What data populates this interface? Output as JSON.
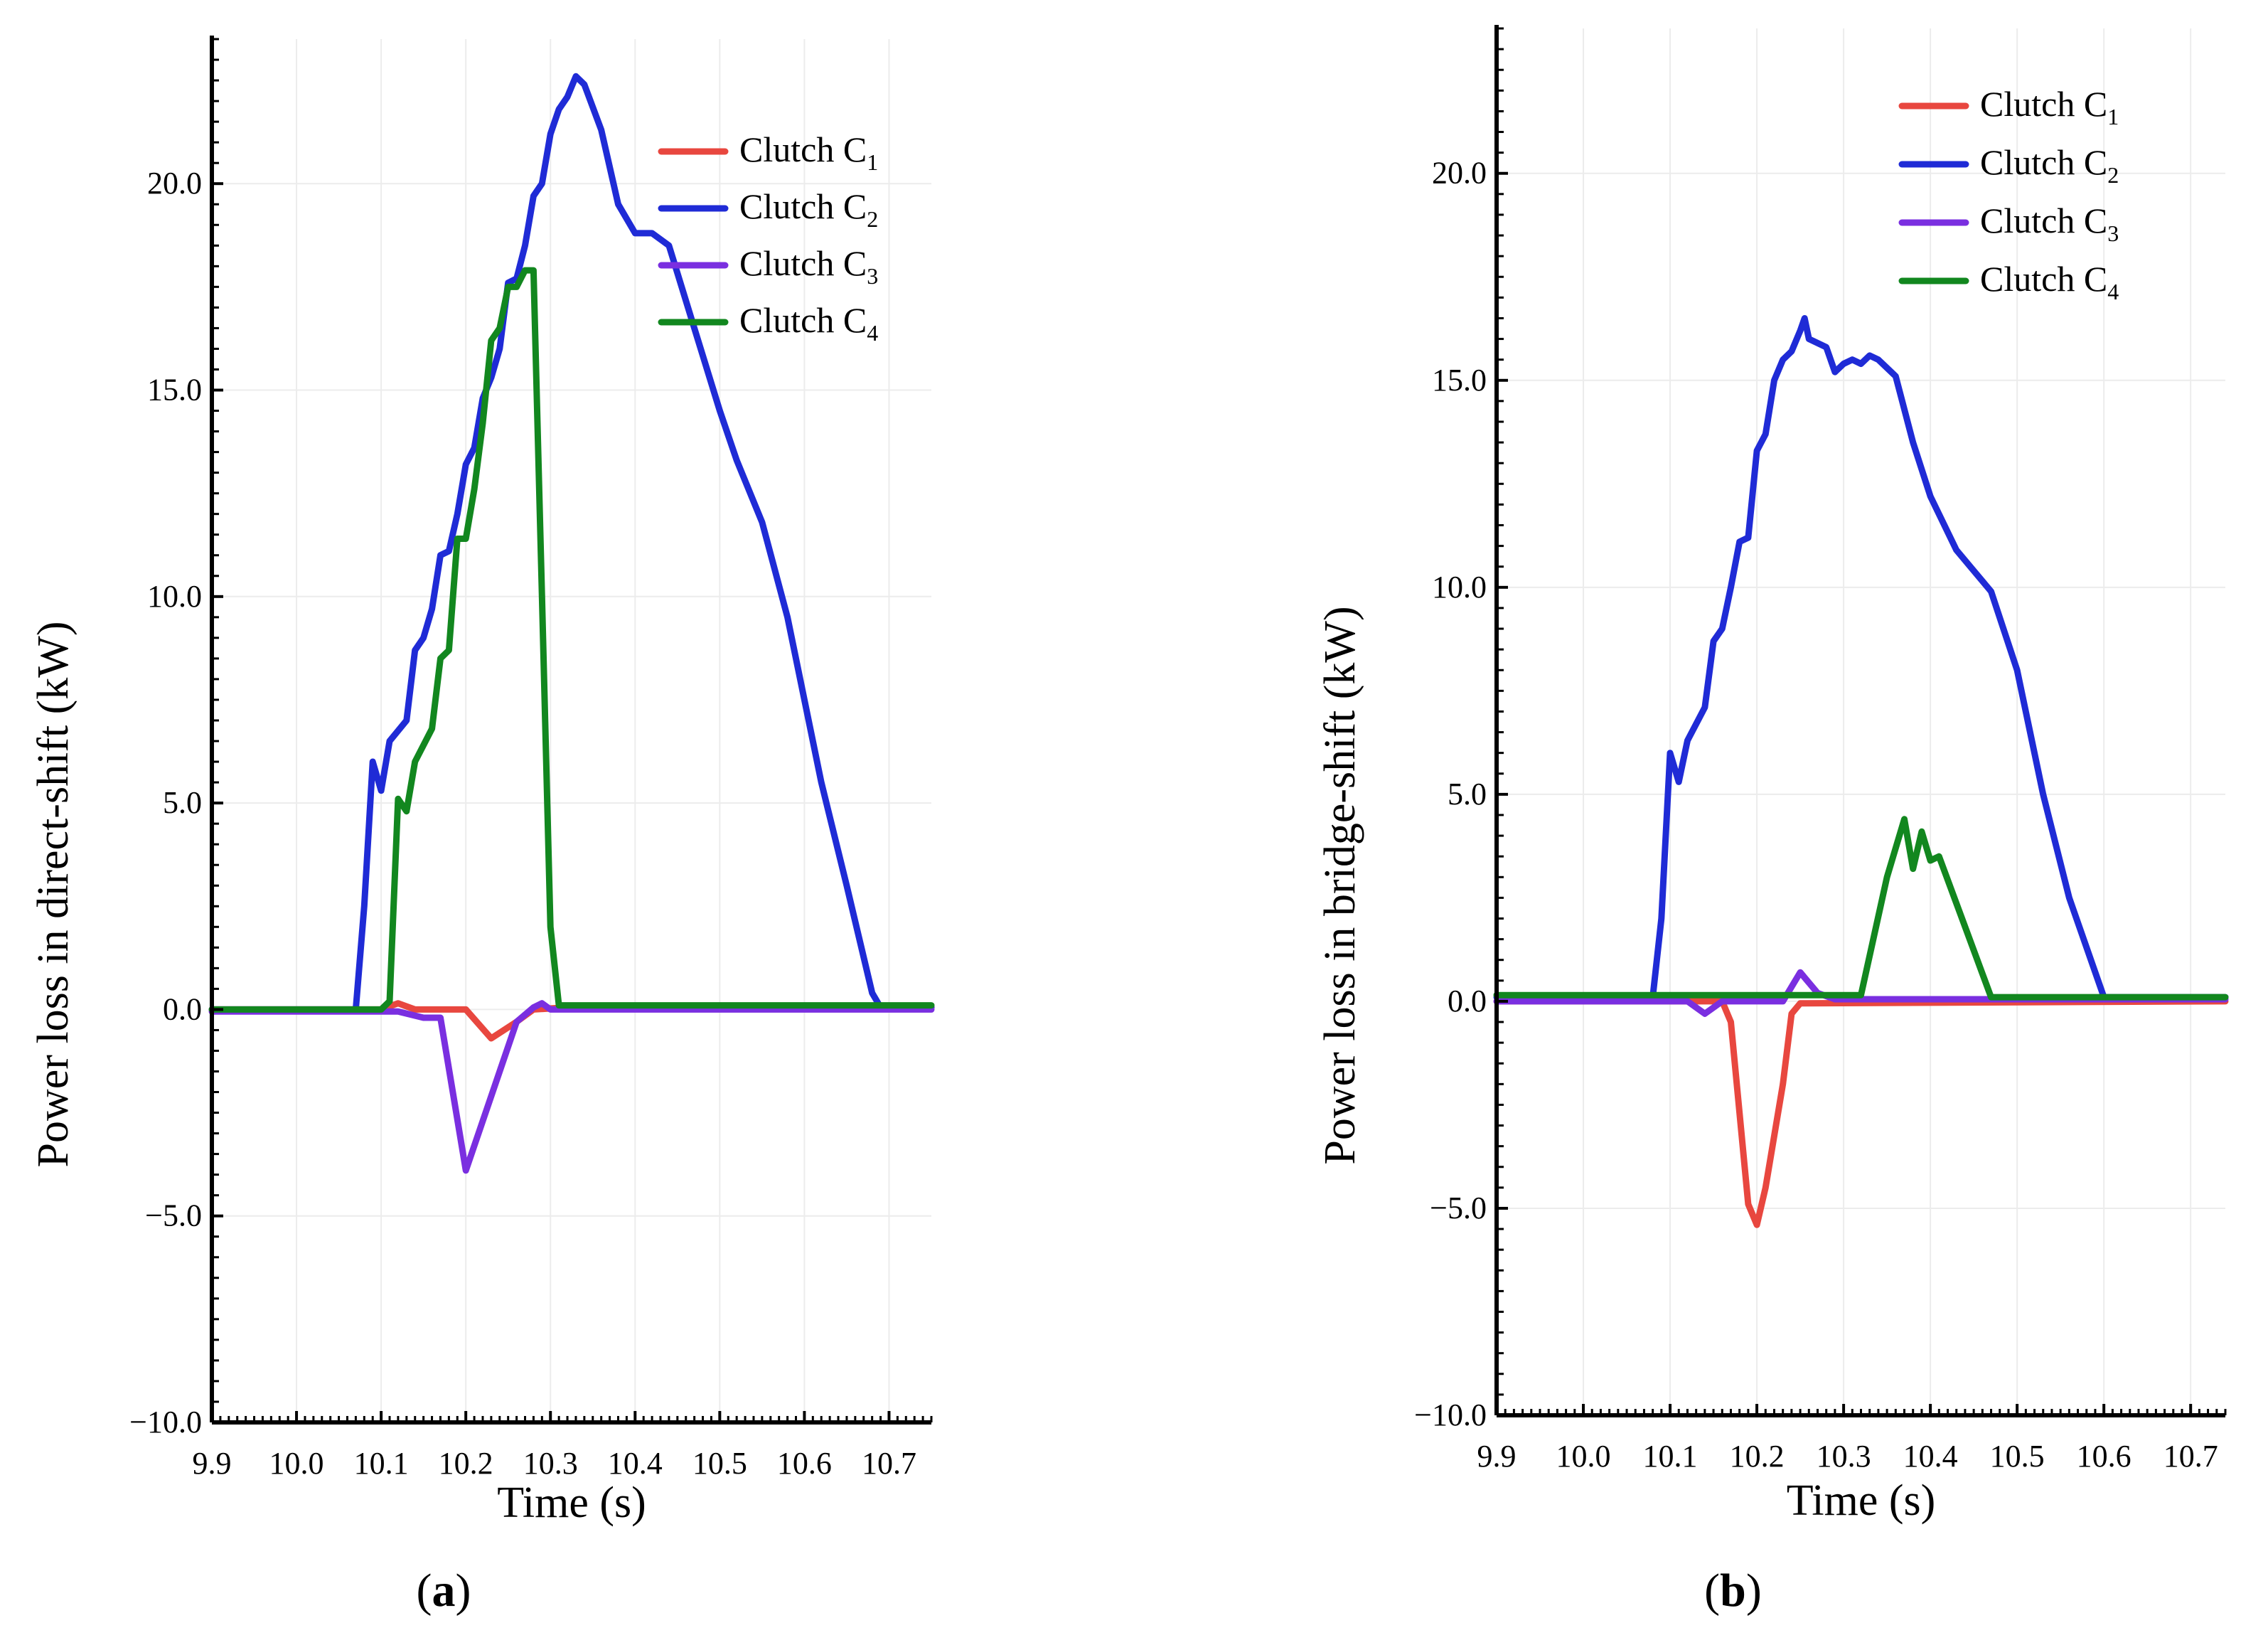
{
  "colors": {
    "c1": "#e8473f",
    "c2": "#1f2bd6",
    "c3": "#7a2fe0",
    "c4": "#12871f",
    "axis": "#000000",
    "grid": "#ececec"
  },
  "chart_data": [
    {
      "type": "line",
      "panel_label": "(a)",
      "panel_letter": "a",
      "xlabel": "Time (s)",
      "ylabel": "Power loss in direct-shift (kW)",
      "xlim": [
        9.9,
        10.75
      ],
      "ylim": [
        -10.0,
        23.5
      ],
      "xticks": [
        9.9,
        10.0,
        10.1,
        10.2,
        10.3,
        10.4,
        10.5,
        10.6,
        10.7
      ],
      "xtick_labels": [
        "9.9",
        "10.0",
        "10.1",
        "10.2",
        "10.3",
        "10.4",
        "10.5",
        "10.6",
        "10.7"
      ],
      "yticks": [
        -10.0,
        -5.0,
        0.0,
        5.0,
        10.0,
        15.0,
        20.0
      ],
      "ytick_labels": [
        "−10.0",
        "−5.0",
        "0.0",
        "5.0",
        "10.0",
        "15.0",
        "20.0"
      ],
      "legend_position": "top-right",
      "series": [
        {
          "key": "c1",
          "name": "Clutch C",
          "sub": "1",
          "points": [
            [
              9.9,
              0
            ],
            [
              10.1,
              0
            ],
            [
              10.12,
              0.15
            ],
            [
              10.14,
              0
            ],
            [
              10.2,
              0
            ],
            [
              10.23,
              -0.7
            ],
            [
              10.26,
              -0.3
            ],
            [
              10.28,
              0
            ],
            [
              10.32,
              0.05
            ],
            [
              10.75,
              0.05
            ]
          ]
        },
        {
          "key": "c2",
          "name": "Clutch C",
          "sub": "2",
          "points": [
            [
              9.9,
              0
            ],
            [
              10.07,
              0
            ],
            [
              10.08,
              2.5
            ],
            [
              10.09,
              6.0
            ],
            [
              10.1,
              5.3
            ],
            [
              10.11,
              6.5
            ],
            [
              10.13,
              7.0
            ],
            [
              10.14,
              8.7
            ],
            [
              10.15,
              9.0
            ],
            [
              10.16,
              9.7
            ],
            [
              10.17,
              11.0
            ],
            [
              10.18,
              11.1
            ],
            [
              10.19,
              12.0
            ],
            [
              10.2,
              13.2
            ],
            [
              10.21,
              13.6
            ],
            [
              10.22,
              14.8
            ],
            [
              10.23,
              15.3
            ],
            [
              10.24,
              16.0
            ],
            [
              10.25,
              17.6
            ],
            [
              10.26,
              17.7
            ],
            [
              10.27,
              18.5
            ],
            [
              10.28,
              19.7
            ],
            [
              10.29,
              20.0
            ],
            [
              10.3,
              21.2
            ],
            [
              10.31,
              21.8
            ],
            [
              10.32,
              22.1
            ],
            [
              10.33,
              22.6
            ],
            [
              10.34,
              22.4
            ],
            [
              10.36,
              21.3
            ],
            [
              10.38,
              19.5
            ],
            [
              10.4,
              18.8
            ],
            [
              10.42,
              18.8
            ],
            [
              10.44,
              18.5
            ],
            [
              10.47,
              16.5
            ],
            [
              10.5,
              14.5
            ],
            [
              10.52,
              13.3
            ],
            [
              10.55,
              11.8
            ],
            [
              10.58,
              9.5
            ],
            [
              10.62,
              5.5
            ],
            [
              10.65,
              3.0
            ],
            [
              10.68,
              0.4
            ],
            [
              10.69,
              0.05
            ],
            [
              10.75,
              0.05
            ]
          ]
        },
        {
          "key": "c3",
          "name": "Clutch C",
          "sub": "3",
          "points": [
            [
              9.9,
              -0.05
            ],
            [
              10.12,
              -0.05
            ],
            [
              10.15,
              -0.2
            ],
            [
              10.17,
              -0.2
            ],
            [
              10.2,
              -3.9
            ],
            [
              10.24,
              -1.5
            ],
            [
              10.26,
              -0.3
            ],
            [
              10.28,
              0.05
            ],
            [
              10.29,
              0.15
            ],
            [
              10.3,
              0
            ],
            [
              10.75,
              0
            ]
          ]
        },
        {
          "key": "c4",
          "name": "Clutch C",
          "sub": "4",
          "points": [
            [
              9.9,
              0
            ],
            [
              10.1,
              0
            ],
            [
              10.11,
              0.2
            ],
            [
              10.12,
              5.1
            ],
            [
              10.13,
              4.8
            ],
            [
              10.14,
              6.0
            ],
            [
              10.16,
              6.8
            ],
            [
              10.17,
              8.5
            ],
            [
              10.18,
              8.7
            ],
            [
              10.19,
              11.4
            ],
            [
              10.2,
              11.4
            ],
            [
              10.21,
              12.6
            ],
            [
              10.22,
              14.2
            ],
            [
              10.23,
              16.2
            ],
            [
              10.24,
              16.5
            ],
            [
              10.25,
              17.5
            ],
            [
              10.26,
              17.5
            ],
            [
              10.27,
              17.9
            ],
            [
              10.28,
              17.9
            ],
            [
              10.29,
              10.0
            ],
            [
              10.3,
              2.0
            ],
            [
              10.31,
              0.1
            ],
            [
              10.75,
              0.1
            ]
          ]
        }
      ]
    },
    {
      "type": "line",
      "panel_label": "(b)",
      "panel_letter": "b",
      "xlabel": "Time (s)",
      "ylabel": "Power loss in bridge-shift (kW)",
      "xlim": [
        9.9,
        10.74
      ],
      "ylim": [
        -10.0,
        23.5
      ],
      "xticks": [
        9.9,
        10.0,
        10.1,
        10.2,
        10.3,
        10.4,
        10.5,
        10.6,
        10.7
      ],
      "xtick_labels": [
        "9.9",
        "10.0",
        "10.1",
        "10.2",
        "10.3",
        "10.4",
        "10.5",
        "10.6",
        "10.7"
      ],
      "yticks": [
        -10.0,
        -5.0,
        0.0,
        5.0,
        10.0,
        15.0,
        20.0
      ],
      "ytick_labels": [
        "−10.0",
        "−5.0",
        "0.0",
        "5.0",
        "10.0",
        "15.0",
        "20.0"
      ],
      "legend_position": "top-right",
      "series": [
        {
          "key": "c1",
          "name": "Clutch C",
          "sub": "1",
          "points": [
            [
              9.9,
              0
            ],
            [
              10.16,
              0
            ],
            [
              10.17,
              -0.5
            ],
            [
              10.19,
              -4.9
            ],
            [
              10.2,
              -5.4
            ],
            [
              10.21,
              -4.5
            ],
            [
              10.23,
              -2.0
            ],
            [
              10.24,
              -0.3
            ],
            [
              10.25,
              -0.05
            ],
            [
              10.74,
              0
            ]
          ]
        },
        {
          "key": "c2",
          "name": "Clutch C",
          "sub": "2",
          "points": [
            [
              9.9,
              0.1
            ],
            [
              10.08,
              0.1
            ],
            [
              10.09,
              2.0
            ],
            [
              10.1,
              6.0
            ],
            [
              10.11,
              5.3
            ],
            [
              10.12,
              6.3
            ],
            [
              10.14,
              7.1
            ],
            [
              10.15,
              8.7
            ],
            [
              10.16,
              9.0
            ],
            [
              10.17,
              10.0
            ],
            [
              10.18,
              11.1
            ],
            [
              10.19,
              11.2
            ],
            [
              10.2,
              13.3
            ],
            [
              10.21,
              13.7
            ],
            [
              10.22,
              15.0
            ],
            [
              10.23,
              15.5
            ],
            [
              10.24,
              15.7
            ],
            [
              10.25,
              16.2
            ],
            [
              10.255,
              16.5
            ],
            [
              10.26,
              16.0
            ],
            [
              10.28,
              15.8
            ],
            [
              10.29,
              15.2
            ],
            [
              10.3,
              15.4
            ],
            [
              10.31,
              15.5
            ],
            [
              10.32,
              15.4
            ],
            [
              10.33,
              15.6
            ],
            [
              10.34,
              15.5
            ],
            [
              10.36,
              15.1
            ],
            [
              10.38,
              13.5
            ],
            [
              10.4,
              12.2
            ],
            [
              10.43,
              10.9
            ],
            [
              10.45,
              10.4
            ],
            [
              10.47,
              9.9
            ],
            [
              10.5,
              8.0
            ],
            [
              10.53,
              5.0
            ],
            [
              10.56,
              2.5
            ],
            [
              10.6,
              0.1
            ],
            [
              10.74,
              0.1
            ]
          ]
        },
        {
          "key": "c3",
          "name": "Clutch C",
          "sub": "3",
          "points": [
            [
              9.9,
              0
            ],
            [
              10.12,
              0
            ],
            [
              10.14,
              -0.3
            ],
            [
              10.16,
              0
            ],
            [
              10.23,
              0
            ],
            [
              10.25,
              0.7
            ],
            [
              10.27,
              0.2
            ],
            [
              10.29,
              0.05
            ],
            [
              10.74,
              0.05
            ]
          ]
        },
        {
          "key": "c4",
          "name": "Clutch C",
          "sub": "4",
          "points": [
            [
              9.9,
              0.15
            ],
            [
              10.32,
              0.15
            ],
            [
              10.35,
              3.0
            ],
            [
              10.37,
              4.4
            ],
            [
              10.38,
              3.2
            ],
            [
              10.39,
              4.1
            ],
            [
              10.4,
              3.4
            ],
            [
              10.41,
              3.5
            ],
            [
              10.44,
              1.8
            ],
            [
              10.47,
              0.1
            ],
            [
              10.74,
              0.1
            ]
          ]
        }
      ]
    }
  ]
}
